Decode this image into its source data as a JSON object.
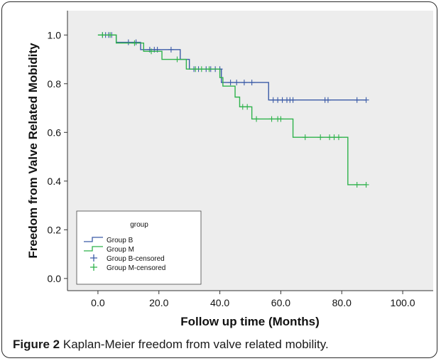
{
  "caption": {
    "label": "Figure 2",
    "text": "Kaplan-Meier freedom from valve related mobility."
  },
  "chart_data": {
    "type": "line",
    "subtype": "kaplan-meier step",
    "title": "",
    "xlabel": "Follow up time (Months)",
    "ylabel": "Freedom from Valve Related Mobidity",
    "xlim": [
      -10,
      110
    ],
    "ylim": [
      -0.05,
      1.1
    ],
    "xticks": [
      0.0,
      20.0,
      40.0,
      60.0,
      80.0,
      100.0
    ],
    "xtick_labels": [
      "0.0",
      "20.0",
      "40.0",
      "60.0",
      "80.0",
      "100.0"
    ],
    "yticks": [
      0.0,
      0.2,
      0.4,
      0.6,
      0.8,
      1.0
    ],
    "ytick_labels": [
      "0.0",
      "0.2",
      "0.4",
      "0.6",
      "0.8",
      "1.0"
    ],
    "grid": false,
    "background": "#ededed",
    "legend": {
      "title": "group",
      "position": "bottom-left",
      "entries": [
        "Group B",
        "Group M",
        "Group B-censored",
        "Group M-censored"
      ]
    },
    "series": [
      {
        "name": "Group B",
        "color": "#3b5ba7",
        "steps": [
          [
            0,
            1.0
          ],
          [
            6,
            0.97
          ],
          [
            14,
            0.94
          ],
          [
            27,
            0.9
          ],
          [
            30,
            0.86
          ],
          [
            40.5,
            0.805
          ],
          [
            56,
            0.733
          ],
          [
            88,
            0.733
          ]
        ],
        "censored": [
          [
            1.5,
            1.0
          ],
          [
            2.5,
            1.0
          ],
          [
            3.5,
            1.0
          ],
          [
            4.5,
            1.0
          ],
          [
            10,
            0.97
          ],
          [
            12.5,
            0.97
          ],
          [
            17,
            0.94
          ],
          [
            18.5,
            0.94
          ],
          [
            19.5,
            0.94
          ],
          [
            24,
            0.94
          ],
          [
            31.5,
            0.86
          ],
          [
            33,
            0.86
          ],
          [
            35.5,
            0.86
          ],
          [
            37,
            0.86
          ],
          [
            38.5,
            0.86
          ],
          [
            40,
            0.86
          ],
          [
            43.5,
            0.805
          ],
          [
            45.5,
            0.805
          ],
          [
            48,
            0.805
          ],
          [
            50.5,
            0.805
          ],
          [
            57.5,
            0.733
          ],
          [
            59,
            0.733
          ],
          [
            60.5,
            0.733
          ],
          [
            62,
            0.733
          ],
          [
            63,
            0.733
          ],
          [
            64,
            0.733
          ],
          [
            74.5,
            0.733
          ],
          [
            75.5,
            0.733
          ],
          [
            85,
            0.733
          ],
          [
            88,
            0.733
          ]
        ]
      },
      {
        "name": "Group M",
        "color": "#2eb24b",
        "steps": [
          [
            0,
            1.0
          ],
          [
            6,
            0.967
          ],
          [
            15,
            0.933
          ],
          [
            21,
            0.9
          ],
          [
            29,
            0.86
          ],
          [
            40,
            0.825
          ],
          [
            41,
            0.79
          ],
          [
            45,
            0.745
          ],
          [
            46.5,
            0.705
          ],
          [
            50.5,
            0.655
          ],
          [
            64,
            0.58
          ],
          [
            82,
            0.385
          ],
          [
            88,
            0.385
          ]
        ],
        "censored": [
          [
            1.5,
            1.0
          ],
          [
            4,
            1.0
          ],
          [
            12,
            0.967
          ],
          [
            17.5,
            0.933
          ],
          [
            26,
            0.9
          ],
          [
            32,
            0.86
          ],
          [
            34,
            0.86
          ],
          [
            36.5,
            0.86
          ],
          [
            47.5,
            0.705
          ],
          [
            49,
            0.705
          ],
          [
            52,
            0.655
          ],
          [
            57,
            0.655
          ],
          [
            59,
            0.655
          ],
          [
            60,
            0.655
          ],
          [
            68,
            0.58
          ],
          [
            73,
            0.58
          ],
          [
            76,
            0.58
          ],
          [
            77.5,
            0.58
          ],
          [
            79,
            0.58
          ],
          [
            85,
            0.385
          ],
          [
            88,
            0.385
          ]
        ]
      }
    ]
  }
}
